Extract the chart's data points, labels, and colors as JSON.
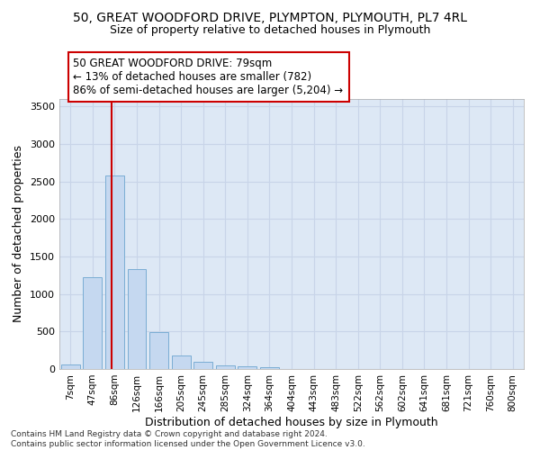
{
  "title_line1": "50, GREAT WOODFORD DRIVE, PLYMPTON, PLYMOUTH, PL7 4RL",
  "title_line2": "Size of property relative to detached houses in Plymouth",
  "xlabel": "Distribution of detached houses by size in Plymouth",
  "ylabel": "Number of detached properties",
  "bar_color": "#c5d8f0",
  "bar_edge_color": "#7aadd4",
  "grid_color": "#c8d4e8",
  "background_color": "#dde8f5",
  "categories": [
    "7sqm",
    "47sqm",
    "86sqm",
    "126sqm",
    "166sqm",
    "205sqm",
    "245sqm",
    "285sqm",
    "324sqm",
    "364sqm",
    "404sqm",
    "443sqm",
    "483sqm",
    "522sqm",
    "562sqm",
    "602sqm",
    "641sqm",
    "681sqm",
    "721sqm",
    "760sqm",
    "800sqm"
  ],
  "values": [
    55,
    1220,
    2580,
    1330,
    490,
    185,
    95,
    50,
    40,
    30,
    0,
    0,
    0,
    0,
    0,
    0,
    0,
    0,
    0,
    0,
    0
  ],
  "ylim": [
    0,
    3600
  ],
  "yticks": [
    0,
    500,
    1000,
    1500,
    2000,
    2500,
    3000,
    3500
  ],
  "annotation_text": "50 GREAT WOODFORD DRIVE: 79sqm\n← 13% of detached houses are smaller (782)\n86% of semi-detached houses are larger (5,204) →",
  "annotation_box_color": "#ffffff",
  "annotation_border_color": "#cc0000",
  "property_line_color": "#cc0000",
  "footer_line1": "Contains HM Land Registry data © Crown copyright and database right 2024.",
  "footer_line2": "Contains public sector information licensed under the Open Government Licence v3.0."
}
